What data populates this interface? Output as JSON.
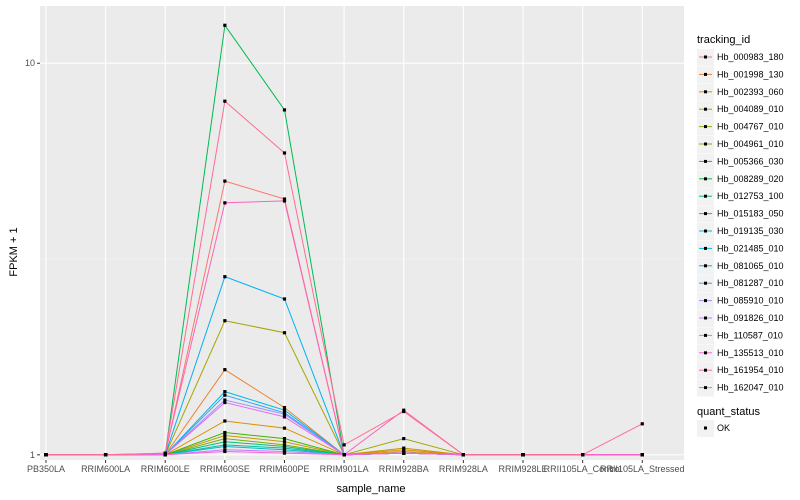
{
  "chart_data": {
    "type": "line",
    "xlabel": "sample_name",
    "ylabel": "FPKM + 1",
    "y_scale": "log10",
    "ylim": [
      0.97,
      14
    ],
    "y_ticks": [
      1,
      10
    ],
    "y_tick_labels": [
      "1",
      "10"
    ],
    "grid": true,
    "legend_position": "right",
    "categories": [
      "PB350LA",
      "RRIM600LA",
      "RRIM600LE",
      "RRIM600SE",
      "RRIM600PE",
      "RRIM901LA",
      "RRIM928BA",
      "RRIM928LA",
      "RRIM928LE",
      "RRII105LA_Control",
      "RRII105LA_Stressed"
    ],
    "legend_color_title": "tracking_id",
    "legend_shape_title": "quant_status",
    "shape_entries": [
      "OK"
    ],
    "series": [
      {
        "name": "Hb_000983_180",
        "color": "#F8766D",
        "values": [
          1,
          1,
          1,
          5.0,
          4.5,
          1,
          1.01,
          1,
          1,
          1,
          1
        ]
      },
      {
        "name": "Hb_001998_130",
        "color": "#EA8331",
        "values": [
          1,
          1,
          1,
          1.65,
          1.32,
          1,
          1.02,
          1,
          1,
          1,
          1
        ]
      },
      {
        "name": "Hb_002393_060",
        "color": "#D89000",
        "values": [
          1,
          1,
          1,
          1.22,
          1.17,
          1,
          1.03,
          1,
          1,
          1,
          1
        ]
      },
      {
        "name": "Hb_004089_010",
        "color": "#C09B00",
        "values": [
          1,
          1,
          1,
          1.12,
          1.08,
          1,
          1.04,
          1,
          1,
          1,
          1
        ]
      },
      {
        "name": "Hb_004767_010",
        "color": "#A3A500",
        "values": [
          1,
          1,
          1,
          2.2,
          2.05,
          1,
          1.1,
          1,
          1,
          1,
          1
        ]
      },
      {
        "name": "Hb_004961_010",
        "color": "#7CAE00",
        "values": [
          1,
          1,
          1,
          1.1,
          1.06,
          1,
          1.01,
          1,
          1,
          1,
          1
        ]
      },
      {
        "name": "Hb_005366_030",
        "color": "#39B600",
        "values": [
          1,
          1,
          1,
          1.14,
          1.1,
          1,
          1.01,
          1,
          1,
          1,
          1
        ]
      },
      {
        "name": "Hb_008289_020",
        "color": "#00BB4E",
        "values": [
          1,
          1,
          1,
          12.5,
          7.6,
          1,
          1.01,
          1,
          1,
          1,
          1
        ]
      },
      {
        "name": "Hb_012753_100",
        "color": "#00BF7D",
        "values": [
          1,
          1,
          1,
          1.08,
          1.05,
          1,
          1.01,
          1,
          1,
          1,
          1
        ]
      },
      {
        "name": "Hb_015183_050",
        "color": "#00C1A3",
        "values": [
          1,
          1,
          1,
          1.06,
          1.04,
          1,
          1.01,
          1,
          1,
          1,
          1
        ]
      },
      {
        "name": "Hb_019135_030",
        "color": "#00BFC4",
        "values": [
          1,
          1,
          1,
          1.05,
          1.03,
          1,
          1.01,
          1,
          1,
          1,
          1
        ]
      },
      {
        "name": "Hb_021485_010",
        "color": "#00BAE0",
        "values": [
          1,
          1,
          1,
          1.45,
          1.3,
          1,
          1.01,
          1,
          1,
          1,
          1
        ]
      },
      {
        "name": "Hb_081065_010",
        "color": "#00B0F6",
        "values": [
          1,
          1,
          1,
          2.85,
          2.5,
          1,
          1.01,
          1,
          1,
          1,
          1
        ]
      },
      {
        "name": "Hb_081287_010",
        "color": "#35A2FF",
        "values": [
          1,
          1,
          1,
          1.42,
          1.28,
          1,
          1.01,
          1,
          1,
          1,
          1
        ]
      },
      {
        "name": "Hb_085910_010",
        "color": "#9590FF",
        "values": [
          1,
          1,
          1,
          1.38,
          1.27,
          1,
          1.01,
          1,
          1,
          1,
          1
        ]
      },
      {
        "name": "Hb_091826_010",
        "color": "#C77CFF",
        "values": [
          1,
          1,
          1,
          1.03,
          1.02,
          1,
          1.01,
          1,
          1,
          1,
          1
        ]
      },
      {
        "name": "Hb_110587_010",
        "color": "#E76BF3",
        "values": [
          1,
          1,
          1,
          1.36,
          1.25,
          1,
          1.01,
          1,
          1,
          1,
          1
        ]
      },
      {
        "name": "Hb_135513_010",
        "color": "#FA62DB",
        "values": [
          1,
          1,
          1,
          1.02,
          1.01,
          1,
          1.01,
          1,
          1,
          1,
          1
        ]
      },
      {
        "name": "Hb_161954_010",
        "color": "#FF62BC",
        "values": [
          1,
          1,
          1.01,
          4.4,
          4.45,
          1,
          1.3,
          1,
          1,
          1,
          1
        ]
      },
      {
        "name": "Hb_162047_010",
        "color": "#FF6C91",
        "values": [
          1,
          1,
          1.01,
          8.0,
          5.9,
          1.06,
          1.29,
          1,
          1,
          1,
          1.2
        ]
      }
    ]
  }
}
